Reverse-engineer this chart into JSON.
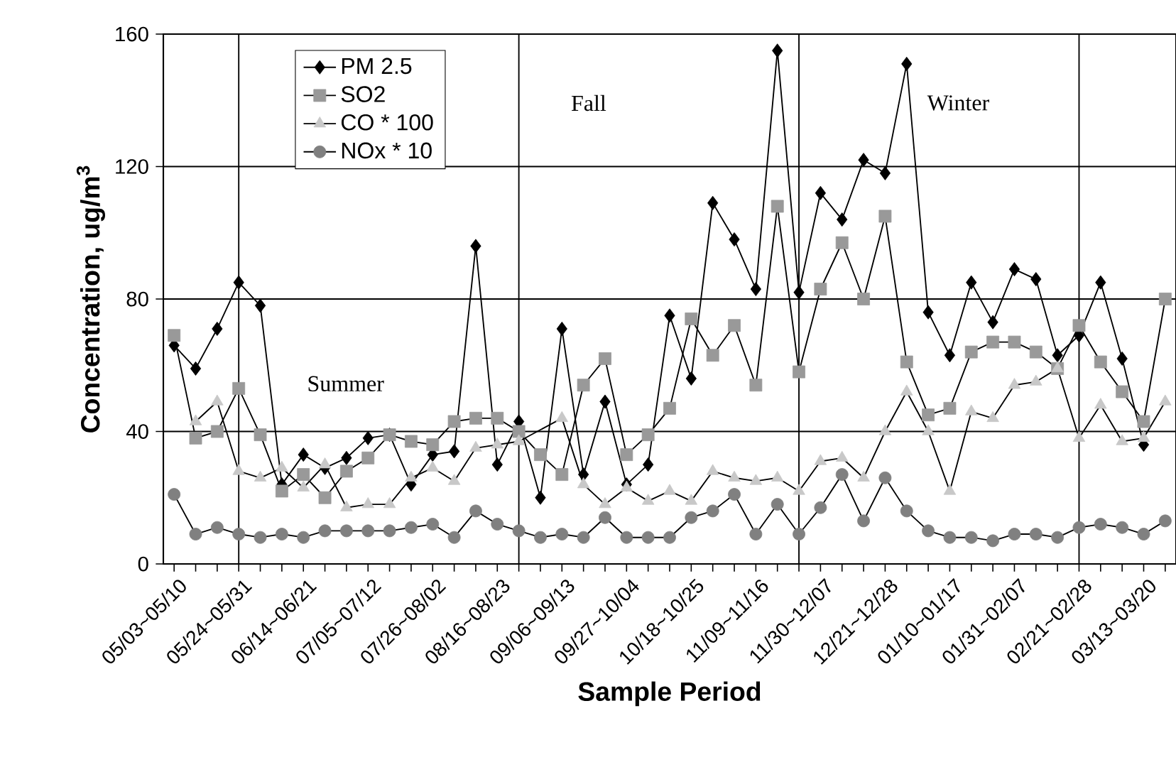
{
  "chart_data": {
    "type": "line",
    "ylabel": "Concentration, ug/m$^{3}$",
    "xlabel": "Sample Period",
    "categories": [
      "05/03~05/10",
      null,
      null,
      "05/24~05/31",
      null,
      null,
      "06/14~06/21",
      null,
      null,
      "07/05~07/12",
      null,
      null,
      "07/26~08/02",
      null,
      null,
      "08/16~08/23",
      null,
      null,
      "09/06~09/13",
      null,
      null,
      "09/27~10/04",
      null,
      null,
      "10/18~10/25",
      null,
      null,
      "11/09~11/16",
      null,
      null,
      "11/30~12/07",
      null,
      null,
      "12/21~12/28",
      null,
      null,
      "01/10~01/17",
      null,
      null,
      "01/31~02/07",
      null,
      null,
      "02/21~02/28",
      null,
      null,
      "03/13~03/20",
      null
    ],
    "series": [
      {
        "name": "PM 2.5",
        "color": "#000000",
        "marker": "diamond",
        "values": [
          66,
          59,
          71,
          85,
          78,
          24,
          33,
          29,
          32,
          38,
          39,
          24,
          33,
          34,
          96,
          30,
          43,
          20,
          71,
          27,
          49,
          24,
          30,
          75,
          56,
          109,
          98,
          83,
          155,
          82,
          112,
          104,
          122,
          118,
          151,
          76,
          63,
          85,
          73,
          89,
          86,
          63,
          69,
          85,
          62,
          36,
          null
        ]
      },
      {
        "name": "SO2",
        "color": "#999999",
        "marker": "square",
        "values": [
          69,
          38,
          40,
          53,
          39,
          22,
          27,
          20,
          28,
          32,
          39,
          37,
          36,
          43,
          44,
          44,
          40,
          33,
          27,
          54,
          62,
          33,
          39,
          47,
          74,
          63,
          72,
          54,
          108,
          58,
          83,
          97,
          80,
          105,
          61,
          45,
          47,
          64,
          67,
          67,
          64,
          59,
          72,
          61,
          52,
          43,
          80
        ]
      },
      {
        "name": "CO * 100",
        "color": "#c8c8c8",
        "marker": "triangle",
        "values": [
          null,
          43,
          49,
          28,
          26,
          29,
          23,
          30,
          17,
          18,
          18,
          26,
          29,
          25,
          35,
          36,
          37,
          null,
          44,
          24,
          18,
          23,
          19,
          22,
          19,
          28,
          26,
          25,
          26,
          22,
          31,
          32,
          26,
          40,
          52,
          40,
          22,
          46,
          44,
          54,
          55,
          59,
          38,
          48,
          37,
          38,
          49
        ]
      },
      {
        "name": "NOx * 10",
        "color": "#808080",
        "marker": "circle",
        "values": [
          21,
          9,
          11,
          9,
          8,
          9,
          8,
          10,
          10,
          10,
          10,
          11,
          12,
          8,
          16,
          12,
          10,
          8,
          9,
          8,
          14,
          8,
          8,
          8,
          14,
          16,
          21,
          9,
          18,
          9,
          17,
          27,
          13,
          26,
          16,
          10,
          8,
          8,
          7,
          9,
          9,
          8,
          11,
          12,
          11,
          9,
          13
        ]
      }
    ],
    "ylim": [
      0,
      160
    ],
    "yticks": [
      0,
      40,
      80,
      120,
      160
    ],
    "grid": true,
    "legend": "top left",
    "annotations": [
      "Summer",
      "Fall",
      "Winter"
    ]
  }
}
